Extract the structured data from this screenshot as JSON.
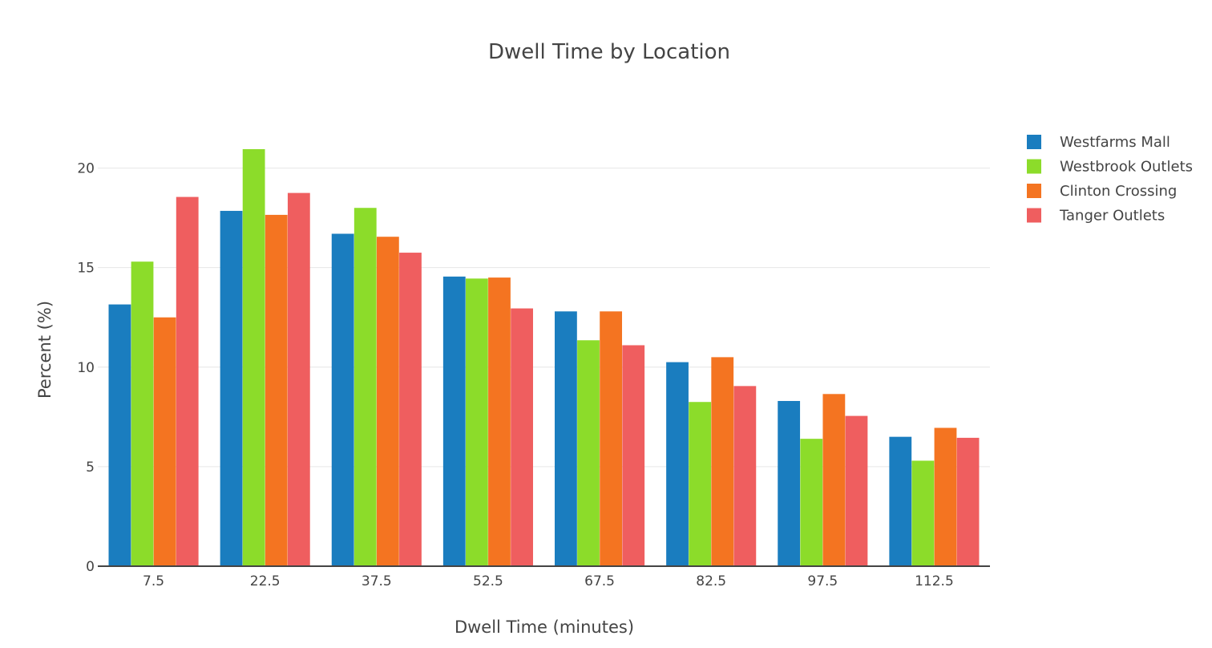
{
  "chart_data": {
    "type": "bar",
    "title": "Dwell Time by Location",
    "xlabel": "Dwell Time (minutes)",
    "ylabel": "Percent (%)",
    "categories": [
      "7.5",
      "22.5",
      "37.5",
      "52.5",
      "67.5",
      "82.5",
      "97.5",
      "112.5"
    ],
    "series": [
      {
        "name": "Westfarms Mall",
        "color": "#1a7dbf",
        "values": [
          13.15,
          17.85,
          16.7,
          14.55,
          12.8,
          10.25,
          8.3,
          6.5
        ]
      },
      {
        "name": "Westbrook Outlets",
        "color": "#8cdc2a",
        "values": [
          15.3,
          20.95,
          18.0,
          14.45,
          11.35,
          8.25,
          6.4,
          5.3
        ]
      },
      {
        "name": "Clinton Crossing",
        "color": "#f47421",
        "values": [
          12.5,
          17.65,
          16.55,
          14.5,
          12.8,
          10.5,
          8.65,
          6.95
        ]
      },
      {
        "name": "Tanger Outlets",
        "color": "#ef5e5f",
        "values": [
          18.55,
          18.75,
          15.75,
          12.95,
          11.1,
          9.05,
          7.55,
          6.45
        ]
      }
    ],
    "yticks": [
      "0",
      "5",
      "10",
      "15",
      "20"
    ],
    "ylim": [
      0,
      22.4
    ],
    "grid": true,
    "legend_position": "top-right"
  }
}
